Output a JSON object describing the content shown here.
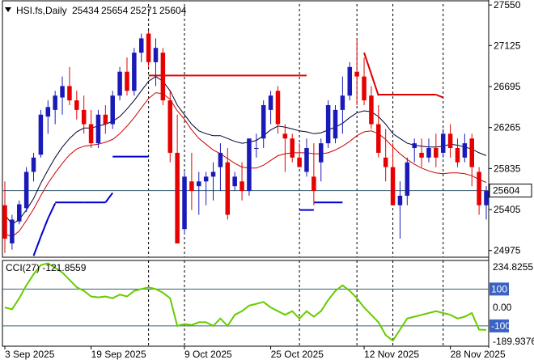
{
  "chart_data": [
    {
      "type": "candlestick",
      "header": {
        "symbol": "HSI.fs,Daily",
        "ohlc": [
          "25434",
          "25654",
          "25271",
          "25604"
        ]
      },
      "ylim": [
        24905,
        27560
      ],
      "y_ticks": [
        "27550",
        "27125",
        "26695",
        "26265",
        "25835",
        "25405",
        "24975"
      ],
      "last_price": "25604",
      "x_labels": [
        {
          "label": "3 Sep 2025",
          "bar": 0
        },
        {
          "label": "19 Sep 2025",
          "bar": 12
        },
        {
          "label": "9 Oct 2025",
          "bar": 25
        },
        {
          "label": "25 Oct 2025",
          "bar": 37
        },
        {
          "label": "12 Nov 2025",
          "bar": 50
        },
        {
          "label": "28 Nov 2025",
          "bar": 62
        }
      ],
      "dashed_separator_bars": [
        20,
        25,
        41,
        49,
        54,
        61
      ],
      "candles": [
        [
          25450,
          25700,
          24950,
          25100
        ],
        [
          25050,
          25350,
          24985,
          25300
        ],
        [
          25280,
          25500,
          25250,
          25460
        ],
        [
          25420,
          25850,
          25380,
          25800
        ],
        [
          25800,
          26000,
          25700,
          25950
        ],
        [
          25980,
          26450,
          25950,
          26400
        ],
        [
          26380,
          26550,
          26200,
          26480
        ],
        [
          26450,
          26650,
          26300,
          26600
        ],
        [
          26580,
          26800,
          26400,
          26700
        ],
        [
          26700,
          26900,
          26500,
          26550
        ],
        [
          26550,
          26650,
          26350,
          26450
        ],
        [
          26450,
          26600,
          26200,
          26300
        ],
        [
          26300,
          26450,
          26050,
          26100
        ],
        [
          26100,
          26450,
          26050,
          26400
        ],
        [
          26400,
          26500,
          26200,
          26300
        ],
        [
          26300,
          26650,
          26250,
          26600
        ],
        [
          26600,
          26900,
          26550,
          26850
        ],
        [
          26850,
          27000,
          26600,
          26650
        ],
        [
          26650,
          27100,
          26600,
          27050
        ],
        [
          27050,
          27250,
          26950,
          27200
        ],
        [
          27250,
          27280,
          26900,
          26950
        ],
        [
          26950,
          27200,
          26700,
          27100
        ],
        [
          27050,
          27100,
          26500,
          26550
        ],
        [
          26550,
          26650,
          25900,
          26000
        ],
        [
          26000,
          26400,
          25050,
          25050
        ],
        [
          25200,
          25800,
          25150,
          25750
        ],
        [
          25700,
          26000,
          25400,
          25600
        ],
        [
          25650,
          25800,
          25350,
          25700
        ],
        [
          25700,
          25800,
          25450,
          25750
        ],
        [
          25750,
          25900,
          25500,
          25800
        ],
        [
          25850,
          26100,
          25600,
          26000
        ],
        [
          25900,
          26050,
          25300,
          25350
        ],
        [
          25650,
          25800,
          25600,
          25750
        ],
        [
          25700,
          25900,
          25500,
          25600
        ],
        [
          25600,
          26150,
          25550,
          26150
        ],
        [
          26050,
          26200,
          25950,
          26050
        ],
        [
          26150,
          26550,
          26050,
          26500
        ],
        [
          26450,
          26650,
          26300,
          26600
        ],
        [
          26650,
          26700,
          26200,
          26300
        ],
        [
          26200,
          26300,
          25800,
          26150
        ],
        [
          26150,
          26200,
          25900,
          25950
        ],
        [
          25950,
          26100,
          25850,
          25850
        ],
        [
          25800,
          26150,
          25750,
          26050
        ],
        [
          25750,
          26100,
          25450,
          25600
        ],
        [
          25900,
          26150,
          25700,
          26100
        ],
        [
          26100,
          26550,
          26050,
          26500
        ],
        [
          26150,
          26500,
          26100,
          26450
        ],
        [
          26450,
          26800,
          26200,
          26600
        ],
        [
          26600,
          26950,
          26550,
          26900
        ],
        [
          26850,
          27200,
          26500,
          26800
        ],
        [
          26800,
          27000,
          26500,
          26550
        ],
        [
          26600,
          26700,
          26250,
          26300
        ],
        [
          26300,
          26500,
          25950,
          26000
        ],
        [
          25950,
          26250,
          25700,
          25850
        ],
        [
          25850,
          26100,
          25450,
          25450
        ],
        [
          25450,
          25700,
          25100,
          25550
        ],
        [
          25550,
          25950,
          25450,
          25900
        ],
        [
          26050,
          26150,
          25900,
          26100
        ],
        [
          26000,
          26150,
          25850,
          25950
        ],
        [
          25950,
          26150,
          25900,
          26050
        ],
        [
          26050,
          26200,
          25850,
          25950
        ],
        [
          26000,
          26250,
          25950,
          26200
        ],
        [
          26200,
          26300,
          25950,
          26050
        ],
        [
          26050,
          26150,
          25850,
          25900
        ],
        [
          25950,
          26200,
          25900,
          26100
        ],
        [
          26150,
          26200,
          25650,
          25850
        ],
        [
          25800,
          25850,
          25350,
          25450
        ],
        [
          25450,
          25650,
          25300,
          25600
        ]
      ],
      "ema_fast": [
        25350,
        25250,
        25300,
        25400,
        25520,
        25680,
        25820,
        25950,
        26060,
        26150,
        26220,
        26260,
        26260,
        26280,
        26300,
        26330,
        26380,
        26460,
        26550,
        26650,
        26750,
        26800,
        26750,
        26650,
        26500,
        26400,
        26300,
        26230,
        26200,
        26180,
        26180,
        26150,
        26120,
        26100,
        26110,
        26130,
        26180,
        26240,
        26280,
        26270,
        26250,
        26230,
        26220,
        26200,
        26210,
        26240,
        26270,
        26310,
        26370,
        26420,
        26440,
        26430,
        26380,
        26300,
        26200,
        26150,
        26100,
        26080,
        26070,
        26060,
        26060,
        26070,
        26090,
        26080,
        26060,
        26040,
        26000,
        25970
      ],
      "ema_slow": [
        25150,
        25120,
        25180,
        25290,
        25410,
        25550,
        25680,
        25790,
        25890,
        25980,
        26040,
        26070,
        26080,
        26090,
        26110,
        26140,
        26200,
        26280,
        26370,
        26470,
        26570,
        26630,
        26620,
        26560,
        26440,
        26350,
        26240,
        26150,
        26090,
        26030,
        25990,
        25940,
        25890,
        25850,
        25840,
        25840,
        25870,
        25920,
        25970,
        25990,
        26000,
        26000,
        26000,
        25990,
        25990,
        26000,
        26030,
        26070,
        26120,
        26180,
        26220,
        26230,
        26200,
        26140,
        26060,
        25990,
        25930,
        25880,
        25840,
        25810,
        25790,
        25780,
        25790,
        25790,
        25780,
        25760,
        25720,
        25690
      ],
      "support_lines": [
        {
          "from": 4,
          "to": 5,
          "values": [
            24920,
            25120
          ]
        },
        {
          "from": 5,
          "to": 6,
          "values": [
            25120,
            25310
          ]
        },
        {
          "from": 6,
          "to": 7,
          "values": [
            25310,
            25470
          ]
        },
        {
          "from": 7,
          "to": 11,
          "value": 25480
        },
        {
          "from": 11,
          "to": 14,
          "value": 25480
        },
        {
          "from": 14,
          "to": 15,
          "values": [
            25480,
            25580
          ]
        },
        {
          "from": 15,
          "to": 20,
          "value": 25960
        },
        {
          "from": 41,
          "to": 43,
          "value": 25400
        },
        {
          "from": 43,
          "to": 47,
          "value": 25480
        }
      ],
      "resistance_lines": [
        {
          "from": 20,
          "to": 42,
          "value": 26810
        },
        {
          "from": 50,
          "to": 52,
          "values": [
            27050,
            26600
          ]
        },
        {
          "from": 52,
          "to": 60,
          "value": 26610
        },
        {
          "from": 60,
          "to": 61,
          "values": [
            26610,
            26580
          ]
        }
      ],
      "horizontal_line": 25604
    },
    {
      "type": "line",
      "indicator": "CCI(27)",
      "label": "CCI(27) -121.8559",
      "ylim": [
        -210,
        255
      ],
      "y_ticks": [
        "234.8255",
        "100",
        "0.00",
        "-100",
        "-189.9376"
      ],
      "levels": [
        100,
        -100
      ],
      "values": [
        0,
        -10,
        50,
        120,
        180,
        230,
        240,
        215,
        190,
        150,
        110,
        90,
        60,
        55,
        60,
        50,
        70,
        60,
        90,
        100,
        110,
        100,
        80,
        50,
        -100,
        -90,
        -95,
        -80,
        -80,
        -100,
        -60,
        -100,
        -40,
        -20,
        10,
        20,
        30,
        0,
        -20,
        -40,
        -20,
        -60,
        -20,
        -50,
        -20,
        40,
        90,
        120,
        90,
        50,
        0,
        -40,
        -80,
        -150,
        -180,
        -120,
        -60,
        -50,
        -40,
        -30,
        -20,
        -30,
        -40,
        -60,
        -50,
        -30,
        -120,
        -121.8559
      ],
      "color": "#66cc00"
    }
  ],
  "colors": {
    "up_candle": "#1a1ab8",
    "down_candle": "#e60000",
    "ema_fast": "#000033",
    "ema_slow": "#cc0000",
    "support": "#0000cc",
    "resistance": "#dd0000",
    "cci": "#66cc00",
    "grid_h": "#3a6070",
    "grid_dash": "#000000"
  }
}
